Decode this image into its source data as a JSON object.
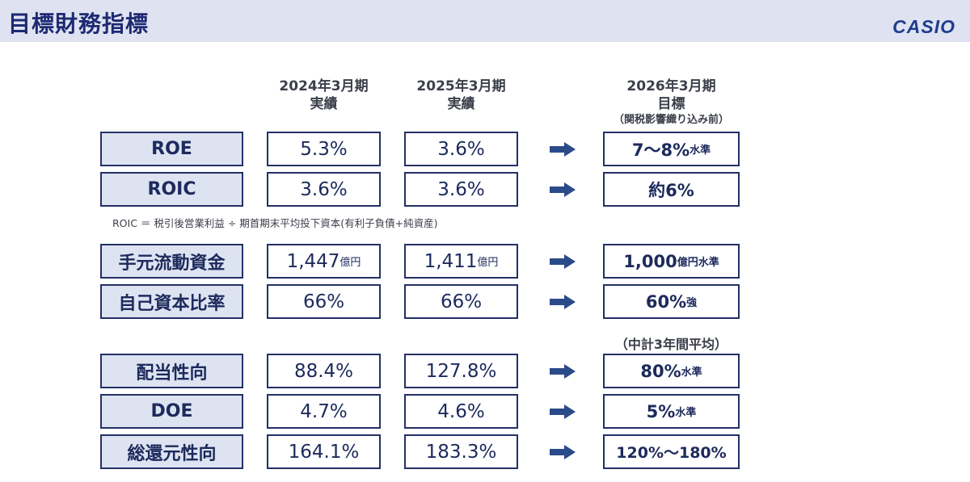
{
  "header": {
    "title": "目標財務指標",
    "logo": "CASIO"
  },
  "columns": {
    "fy2024": {
      "line1": "2024年3月期",
      "line2": "実績"
    },
    "fy2025": {
      "line1": "2025年3月期",
      "line2": "実績"
    },
    "fy2026": {
      "line1": "2026年3月期",
      "line2": "目標",
      "line3": "（関税影響織り込み前）"
    }
  },
  "rows": [
    {
      "label": "ROE",
      "fy2024": "5.3%",
      "fy2025": "3.6%",
      "target": "7～8%",
      "target_suffix": "水準"
    },
    {
      "label": "ROIC",
      "fy2024": "3.6%",
      "fy2025": "3.6%",
      "target": "約6%",
      "target_suffix": ""
    },
    {
      "label": "手元流動資金",
      "fy2024": "1,447",
      "fy2024_unit": "億円",
      "fy2025": "1,411",
      "fy2025_unit": "億円",
      "target": "1,000",
      "target_suffix": "億円水準"
    },
    {
      "label": "自己資本比率",
      "fy2024": "66%",
      "fy2025": "66%",
      "target": "60%",
      "target_suffix": "強"
    },
    {
      "label": "配当性向",
      "fy2024": "88.4%",
      "fy2025": "127.8%",
      "target": "80%",
      "target_suffix": "水準"
    },
    {
      "label": "DOE",
      "fy2024": "4.7%",
      "fy2025": "4.6%",
      "target": "5%",
      "target_suffix": "水準"
    },
    {
      "label": "総還元性向",
      "fy2024": "164.1%",
      "fy2025": "183.3%",
      "target": "120%～180%",
      "target_suffix": ""
    }
  ],
  "roic_note": "ROIC ＝ 税引後営業利益 ÷ 期首期末平均投下資本(有利子負債+純資産)",
  "midterm_note": "（中計3年間平均）",
  "colors": {
    "header_bg": "#dfe3f1",
    "label_bg": "#dde3f1",
    "navy": "#233066",
    "arrow": "#2b4a8a"
  }
}
